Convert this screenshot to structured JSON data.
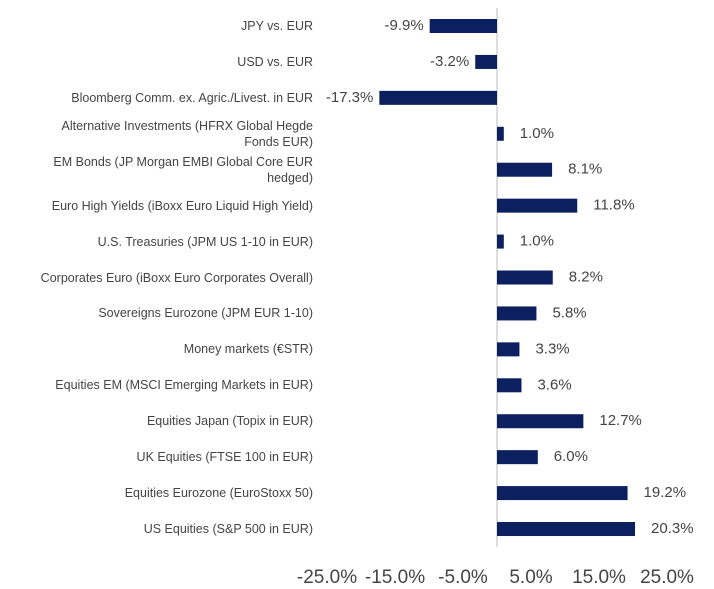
{
  "chart_data": {
    "type": "barh",
    "categories": [
      "JPY vs. EUR",
      "USD vs. EUR",
      "Bloomberg Comm. ex. Agric./Livest. in EUR",
      "Alternative Investments (HFRX Global Hegde\nFonds EUR)",
      "EM Bonds (JP Morgan EMBI Global Core EUR\nhedged)",
      "Euro High Yields (iBoxx Euro Liquid High Yield)",
      "U.S. Treasuries (JPM US 1-10 in EUR)",
      "Corporates Euro (iBoxx Euro Corporates Overall)",
      "Sovereigns Eurozone (JPM EUR 1-10)",
      "Money markets (€STR)",
      "Equities EM (MSCI Emerging Markets in EUR)",
      "Equities Japan (Topix in EUR)",
      "UK Equities (FTSE 100 in EUR)",
      "Equities Eurozone (EuroStoxx 50)",
      "US Equities (S&P 500 in EUR)"
    ],
    "values": [
      -9.9,
      -3.2,
      -17.3,
      1.0,
      8.1,
      11.8,
      1.0,
      8.2,
      5.8,
      3.3,
      3.6,
      12.7,
      6.0,
      19.2,
      20.3
    ],
    "value_labels": [
      "-9.9%",
      "-3.2%",
      "-17.3%",
      "1.0%",
      "8.1%",
      "11.8%",
      "1.0%",
      "8.2%",
      "5.8%",
      "3.3%",
      "3.6%",
      "12.7%",
      "6.0%",
      "19.2%",
      "20.3%"
    ],
    "color": "#0c1f5e",
    "xlim": [
      -25,
      25
    ],
    "xticks": [
      {
        "value": -25,
        "label": "-25.0%"
      },
      {
        "value": -15,
        "label": "-15.0%"
      },
      {
        "value": -5,
        "label": "-5.0%"
      },
      {
        "value": 5,
        "label": "5.0%"
      },
      {
        "value": 15,
        "label": "15.0%"
      },
      {
        "value": 25,
        "label": "25.0%"
      }
    ]
  }
}
